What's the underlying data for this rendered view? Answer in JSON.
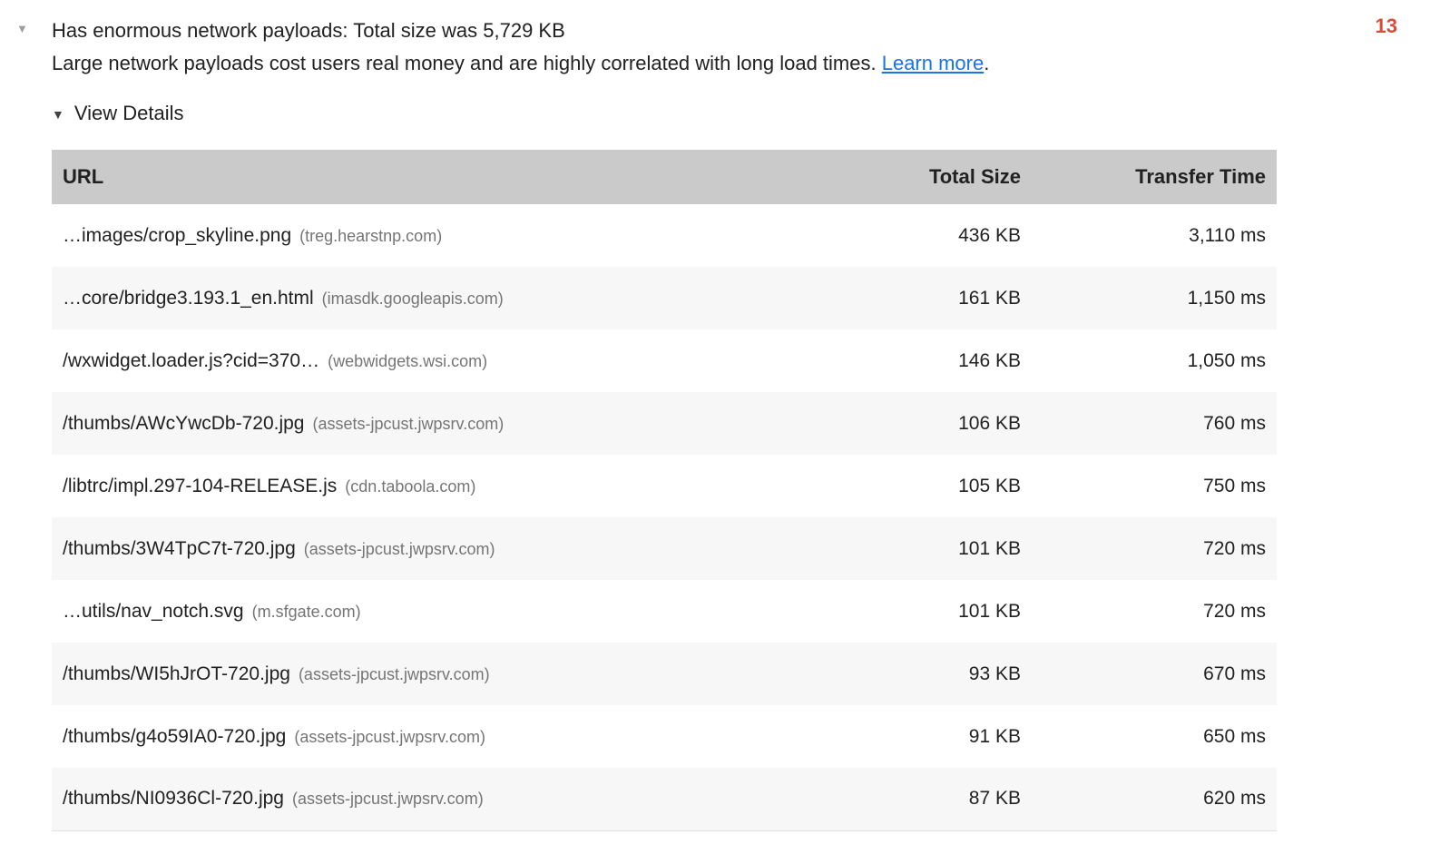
{
  "audit": {
    "title": "Has enormous network payloads: Total size was 5,729 KB",
    "description": "Large network payloads cost users real money and are highly correlated with long load times. ",
    "learn_more_label": "Learn more",
    "description_suffix": ".",
    "count_badge": "13",
    "view_details_label": "View Details"
  },
  "table": {
    "columns": [
      "URL",
      "Total Size",
      "Transfer Time"
    ],
    "rows": [
      {
        "url": "…images/crop_skyline.png",
        "domain": "(treg.hearstnp.com)",
        "size": "436 KB",
        "time": "3,110 ms"
      },
      {
        "url": "…core/bridge3.193.1_en.html",
        "domain": "(imasdk.googleapis.com)",
        "size": "161 KB",
        "time": "1,150 ms"
      },
      {
        "url": "/wxwidget.loader.js?cid=370…",
        "domain": "(webwidgets.wsi.com)",
        "size": "146 KB",
        "time": "1,050 ms"
      },
      {
        "url": "/thumbs/AWcYwcDb-720.jpg",
        "domain": "(assets-jpcust.jwpsrv.com)",
        "size": "106 KB",
        "time": "760 ms"
      },
      {
        "url": "/libtrc/impl.297-104-RELEASE.js",
        "domain": "(cdn.taboola.com)",
        "size": "105 KB",
        "time": "750 ms"
      },
      {
        "url": "/thumbs/3W4TpC7t-720.jpg",
        "domain": "(assets-jpcust.jwpsrv.com)",
        "size": "101 KB",
        "time": "720 ms"
      },
      {
        "url": "…utils/nav_notch.svg",
        "domain": "(m.sfgate.com)",
        "size": "101 KB",
        "time": "720 ms"
      },
      {
        "url": "/thumbs/WI5hJrOT-720.jpg",
        "domain": "(assets-jpcust.jwpsrv.com)",
        "size": "93 KB",
        "time": "670 ms"
      },
      {
        "url": "/thumbs/g4o59IA0-720.jpg",
        "domain": "(assets-jpcust.jwpsrv.com)",
        "size": "91 KB",
        "time": "650 ms"
      },
      {
        "url": "/thumbs/NI0936Cl-720.jpg",
        "domain": "(assets-jpcust.jwpsrv.com)",
        "size": "87 KB",
        "time": "620 ms"
      }
    ]
  },
  "icons": {
    "collapse_arrow": "▼",
    "details_arrow": "▼"
  },
  "colors": {
    "fail_red": "#dd4b39",
    "link_blue": "#1a73e8",
    "header_gray": "#cacaca",
    "alt_row_gray": "#f7f7f7"
  }
}
